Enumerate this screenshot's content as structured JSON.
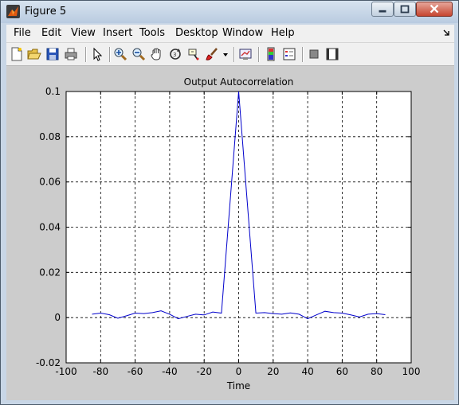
{
  "window": {
    "title": "Figure 5"
  },
  "menu": [
    "File",
    "Edit",
    "View",
    "Insert",
    "Tools",
    "Desktop",
    "Window",
    "Help"
  ],
  "toolbar": {
    "icons": [
      "new-figure-icon",
      "open-file-icon",
      "save-figure-icon",
      "print-figure-icon",
      "edit-plot-arrow-icon",
      "zoom-in-icon",
      "zoom-out-icon",
      "pan-hand-icon",
      "rotate-3d-icon",
      "data-cursor-icon",
      "brush-icon",
      "brush-dropdown-icon",
      "link-plot-icon",
      "insert-colorbar-icon",
      "insert-legend-icon",
      "hide-plot-tools-icon",
      "show-plot-tools-icon"
    ]
  },
  "chart_data": {
    "type": "line",
    "title": "Output Autocorrelation",
    "xlabel": "Time",
    "ylabel": "",
    "xlim": [
      -100,
      100
    ],
    "ylim": [
      -0.02,
      0.1
    ],
    "xticks": [
      -100,
      -80,
      -60,
      -40,
      -20,
      0,
      20,
      40,
      60,
      80,
      100
    ],
    "yticks": [
      -0.02,
      0,
      0.02,
      0.04,
      0.06,
      0.08,
      0.1
    ],
    "ytick_labels": [
      "-0.02",
      "0",
      "0.02",
      "0.04",
      "0.06",
      "0.08",
      "0.1"
    ],
    "grid": true,
    "line_color": "#0000cc",
    "series": [
      {
        "x": [
          -85,
          -80,
          -75,
          -70,
          -65,
          -60,
          -55,
          -50,
          -45,
          -40,
          -35,
          -30,
          -25,
          -20,
          -15,
          -10,
          0,
          10,
          15,
          20,
          25,
          30,
          35,
          40,
          45,
          50,
          55,
          60,
          65,
          70,
          75,
          80,
          85
        ],
        "y": [
          0.0015,
          0.002,
          0.0013,
          -0.0003,
          0.0008,
          0.002,
          0.0018,
          0.0022,
          0.003,
          0.0015,
          -0.0005,
          0.0005,
          0.0015,
          0.0012,
          0.0025,
          0.002,
          0.1,
          0.002,
          0.0022,
          0.0018,
          0.0015,
          0.0021,
          0.0015,
          -0.0005,
          0.0012,
          0.0028,
          0.0022,
          0.002,
          0.0012,
          0.0003,
          0.0015,
          0.0018,
          0.0013
        ]
      }
    ]
  }
}
